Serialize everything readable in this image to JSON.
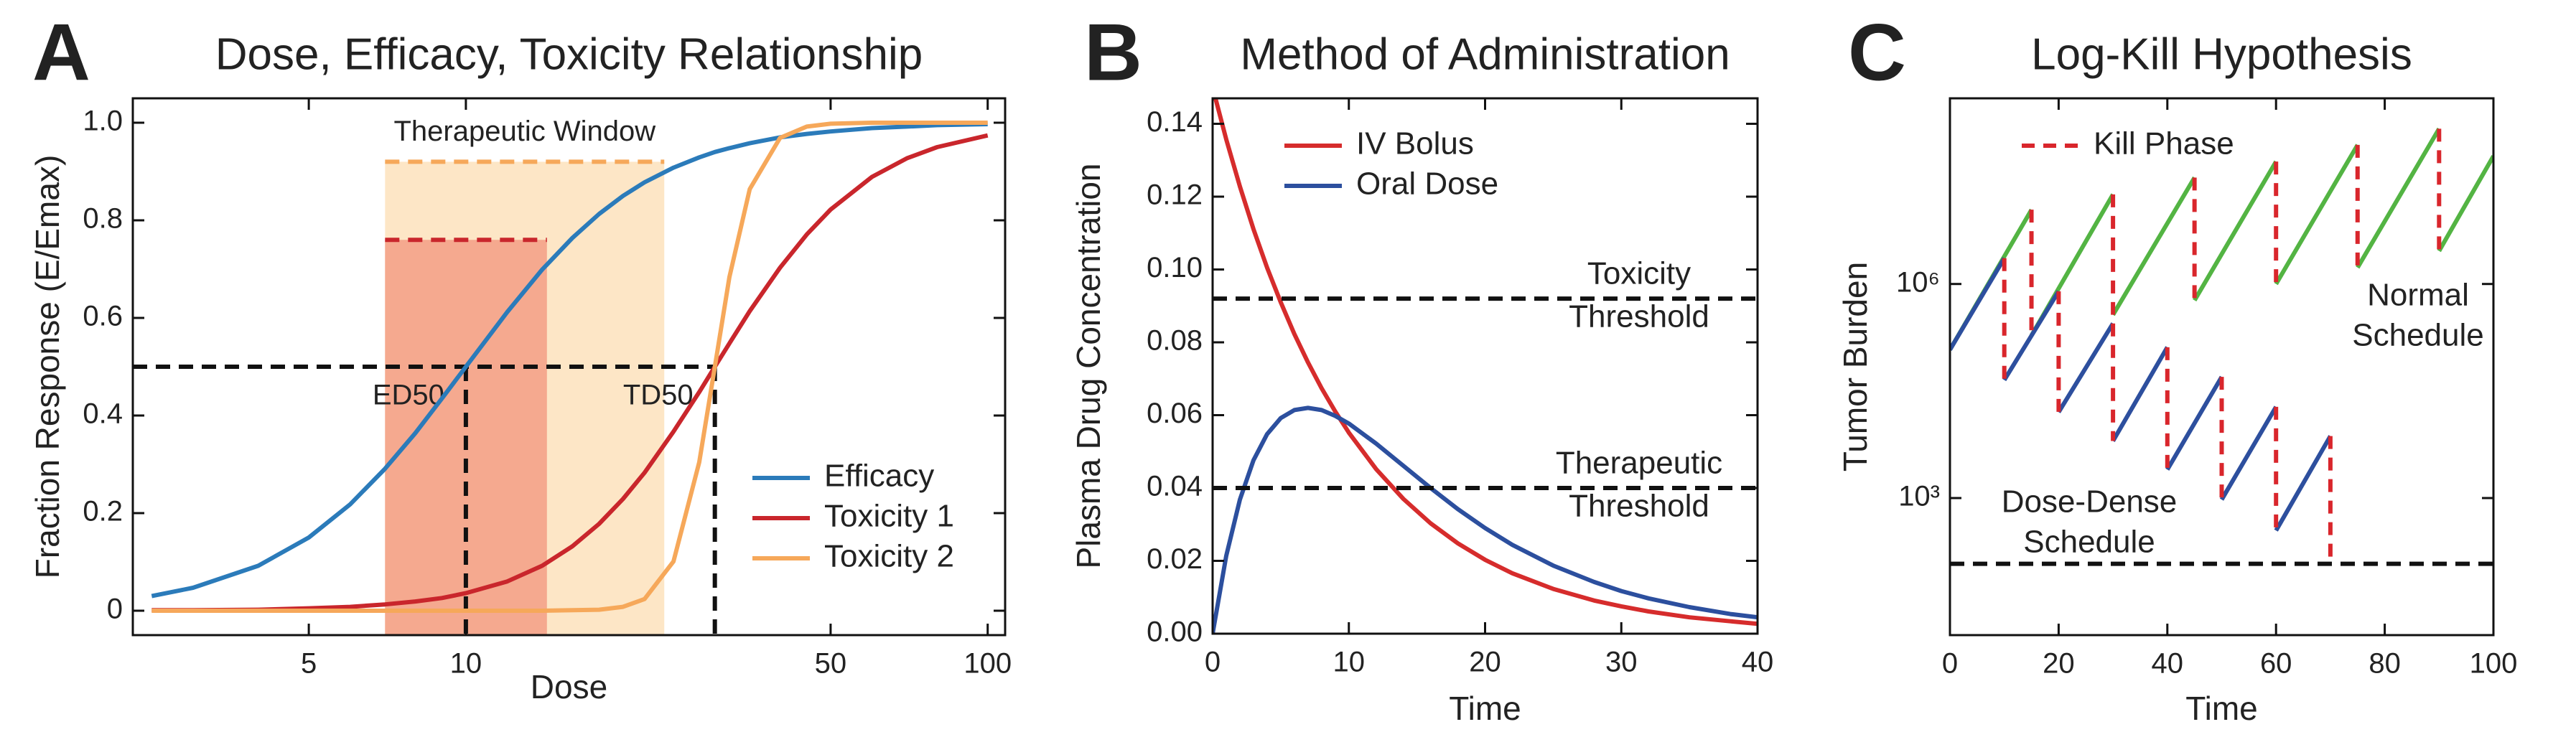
{
  "chart_data": [
    {
      "type": "line",
      "panel_label": "A",
      "title": "Dose, Efficacy, Toxicity Relationship",
      "xlabel": "Dose",
      "ylabel": "Fraction Response (E/Emax)",
      "xscale": "log",
      "xlim": [
        2.3,
        108
      ],
      "ylim": [
        -0.05,
        1.05
      ],
      "xticks": [
        5,
        10,
        50,
        100
      ],
      "yticks": [
        0,
        0.2,
        0.4,
        0.6,
        0.8,
        {
          "value": 1,
          "label": "1.0"
        }
      ],
      "x": [
        2.5,
        3,
        4,
        5,
        6,
        7,
        8,
        9,
        10,
        12,
        14,
        16,
        18,
        20,
        22,
        25,
        28,
        30,
        32,
        35,
        40,
        45,
        50,
        60,
        70,
        80,
        100
      ],
      "series": [
        {
          "name": "Efficacy",
          "color": "#2b7bba",
          "values": [
            0.03,
            0.047,
            0.092,
            0.15,
            0.218,
            0.291,
            0.364,
            0.435,
            0.5,
            0.612,
            0.699,
            0.764,
            0.813,
            0.85,
            0.878,
            0.908,
            0.929,
            0.94,
            0.948,
            0.958,
            0.97,
            0.977,
            0.982,
            0.989,
            0.992,
            0.995,
            0.997
          ]
        },
        {
          "name": "Toxicity 1",
          "color": "#c9262c",
          "values": [
            0.001,
            0.001,
            0.002,
            0.005,
            0.008,
            0.013,
            0.019,
            0.026,
            0.036,
            0.06,
            0.092,
            0.132,
            0.178,
            0.229,
            0.283,
            0.367,
            0.448,
            0.5,
            0.548,
            0.614,
            0.703,
            0.771,
            0.822,
            0.889,
            0.927,
            0.95,
            0.974
          ]
        },
        {
          "name": "Toxicity 2",
          "color": "#f6a85a",
          "values": [
            0,
            0,
            0,
            0,
            0,
            0,
            0,
            0,
            0,
            0,
            0,
            0.001,
            0.002,
            0.008,
            0.024,
            0.101,
            0.304,
            0.5,
            0.684,
            0.864,
            0.969,
            0.992,
            0.998,
            1,
            1,
            1,
            1
          ]
        }
      ],
      "legend": "lower right",
      "shaded_regions": [
        {
          "label": "Therapeutic Window",
          "xrange": [
            7,
            24
          ],
          "top": 0.92,
          "color": "#fde6c6",
          "edge_color": "#f6a85a"
        },
        {
          "xrange": [
            7,
            14.3
          ],
          "top": 0.76,
          "color": "#f5a98f",
          "edge_color": "#c9262c"
        }
      ],
      "reference_lines": [
        {
          "label": "ED50",
          "x": 10,
          "y": 0.5
        },
        {
          "label": "TD50",
          "x": 30,
          "y": 0.5
        }
      ]
    },
    {
      "type": "line",
      "panel_label": "B",
      "title": "Method of Administration",
      "xlabel": "Time",
      "ylabel": "Plasma Drug Concentration",
      "xlim": [
        0,
        40
      ],
      "ylim": [
        0,
        0.147
      ],
      "xticks": [
        0,
        10,
        20,
        30,
        40
      ],
      "yticks": [
        {
          "value": 0,
          "label": "0.00"
        },
        {
          "value": 0.02,
          "label": "0.02"
        },
        {
          "value": 0.04,
          "label": "0.04"
        },
        {
          "value": 0.06,
          "label": "0.06"
        },
        {
          "value": 0.08,
          "label": "0.08"
        },
        {
          "value": 0.1,
          "label": "0.10"
        },
        {
          "value": 0.12,
          "label": "0.12"
        },
        {
          "value": 0.14,
          "label": "0.14"
        }
      ],
      "x": [
        0,
        1,
        2,
        3,
        4,
        5,
        6,
        7,
        8,
        9,
        10,
        12,
        14,
        16,
        18,
        20,
        22,
        25,
        28,
        30,
        32,
        35,
        38,
        40
      ],
      "series": [
        {
          "name": "IV Bolus",
          "color": "#d62c2c",
          "values": [
            0.15,
            0.1357,
            0.1228,
            0.1111,
            0.1005,
            0.091,
            0.0823,
            0.0745,
            0.0674,
            0.061,
            0.0552,
            0.0452,
            0.037,
            0.0303,
            0.0248,
            0.0203,
            0.0166,
            0.0123,
            0.0091,
            0.0075,
            0.0061,
            0.0045,
            0.0034,
            0.0027
          ]
        },
        {
          "name": "Oral Dose",
          "color": "#2c4f9e",
          "values": [
            0,
            0.0214,
            0.0368,
            0.0476,
            0.0548,
            0.0592,
            0.0614,
            0.062,
            0.0614,
            0.0598,
            0.0577,
            0.0522,
            0.0461,
            0.04,
            0.0342,
            0.029,
            0.0244,
            0.0187,
            0.0142,
            0.0117,
            0.0097,
            0.0073,
            0.0054,
            0.0045
          ]
        }
      ],
      "legend": "upper left",
      "thresholds": [
        {
          "label": [
            "Toxicity",
            "Threshold"
          ],
          "value": 0.092
        },
        {
          "label": [
            "Therapeutic",
            "Threshold"
          ],
          "value": 0.04
        }
      ]
    },
    {
      "type": "line",
      "panel_label": "C",
      "title": "Log-Kill Hypothesis",
      "xlabel": "Time",
      "ylabel": "Tumor Burden",
      "yscale": "log",
      "xlim": [
        0,
        100
      ],
      "ylim": [
        12,
        400000000
      ],
      "xticks": [
        0,
        20,
        40,
        60,
        80,
        100
      ],
      "yticks": [
        {
          "value": 1000,
          "label": "10³"
        },
        {
          "value": 1000000,
          "label": "10⁶"
        }
      ],
      "series": [
        {
          "label": [
            "Normal",
            "Schedule"
          ],
          "color": "#53b443",
          "x": [
            0,
            15,
            15,
            15,
            30,
            30,
            30,
            45,
            45,
            45,
            60,
            60,
            60,
            75,
            75,
            75,
            90,
            90,
            90,
            100
          ],
          "values": [
            120000,
            11000000,
            null,
            190000,
            18000000,
            null,
            370000,
            31000000,
            null,
            590000,
            52000000,
            null,
            1000000,
            89000000,
            null,
            1700000,
            150000000,
            null,
            2900000,
            62000000
          ]
        },
        {
          "label": [
            "Dose-Dense",
            "Schedule"
          ],
          "color": "#2d4f9e",
          "x": [
            0,
            10,
            10,
            10,
            20,
            20,
            20,
            30,
            30,
            30,
            40,
            40,
            40,
            50,
            50,
            50,
            60,
            60,
            60,
            70,
            70,
            70
          ],
          "values": [
            120000,
            2300000,
            null,
            45000,
            790000,
            null,
            16000,
            280000,
            null,
            6300,
            130000,
            null,
            2500,
            50000,
            null,
            950,
            19000,
            null,
            350,
            7400,
            null,
            120
          ]
        }
      ],
      "kill_phase": {
        "name": "Kill Phase",
        "color": "#d9262c"
      },
      "legend": "upper left",
      "thresholds": [
        {
          "value": 120
        }
      ]
    }
  ]
}
